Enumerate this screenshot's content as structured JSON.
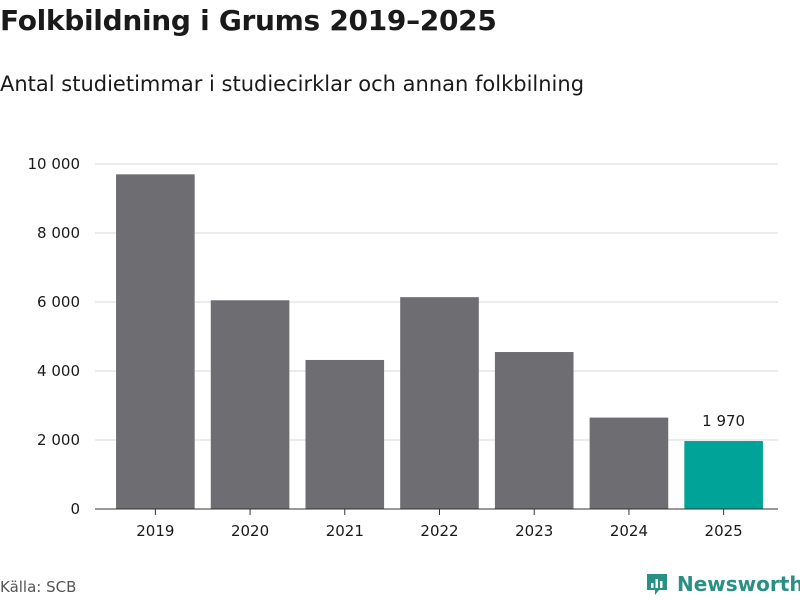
{
  "title": "Folkbildning i Grums 2019–2025",
  "subtitle": "Antal studietimmar i studiecirklar och annan folkbilning",
  "source": "Källa: SCB",
  "brand": {
    "name": "Newsworthy",
    "icon": "newsworthy-logo-icon",
    "color": "#2a8f85"
  },
  "chart_data": {
    "type": "bar",
    "categories": [
      "2019",
      "2020",
      "2021",
      "2022",
      "2023",
      "2024",
      "2025"
    ],
    "values": [
      9700,
      6050,
      4320,
      6140,
      4550,
      2650,
      1970
    ],
    "highlight_index": 6,
    "highlight_label": "1 970",
    "ylim": [
      0,
      10000
    ],
    "yticks": [
      0,
      2000,
      4000,
      6000,
      8000,
      10000
    ],
    "ytick_labels": [
      "0",
      "2 000",
      "4 000",
      "6 000",
      "8 000",
      "10 000"
    ],
    "grid": true,
    "colors": {
      "bar": "#6e6d72",
      "highlight": "#00a397",
      "grid": "#d9d9d9",
      "axis": "#333333"
    }
  }
}
